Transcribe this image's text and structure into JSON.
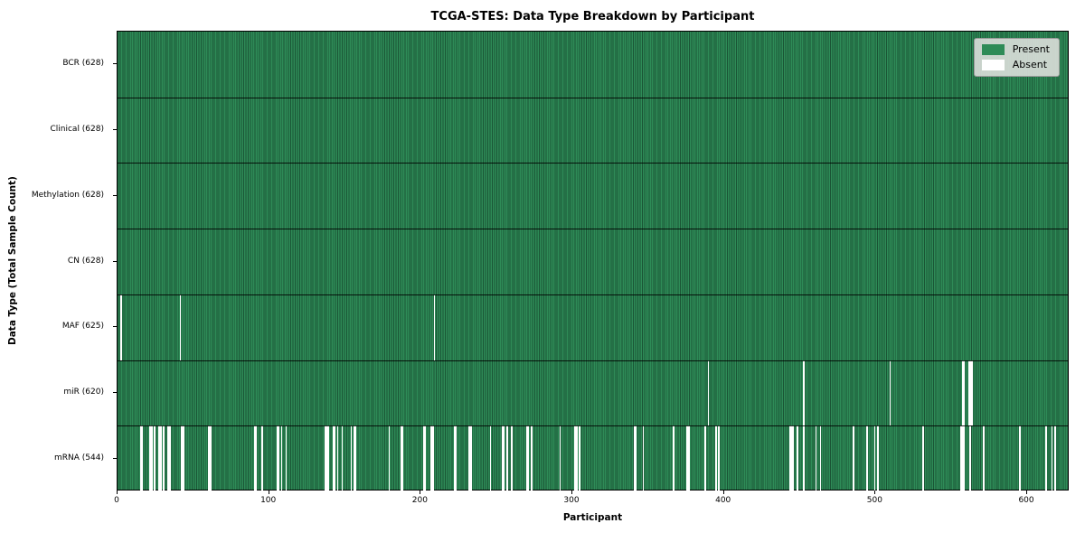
{
  "title": "TCGA-STES: Data Type Breakdown by Participant",
  "xlabel": "Participant",
  "ylabel": "Data Type (Total Sample Count)",
  "legend": {
    "present_label": "Present",
    "absent_label": "Absent"
  },
  "colors": {
    "present": "#2e8b57",
    "absent": "#ffffff",
    "cell_edge": "#1b4d32",
    "gridline": "#000000",
    "legend_bg": "#d9d9d9"
  },
  "chart_data": {
    "type": "heatmap",
    "x_total": 628,
    "xlim": [
      0,
      628
    ],
    "xticks": [
      0,
      100,
      200,
      300,
      400,
      500,
      600
    ],
    "legend_position": "upper right",
    "value_states": [
      "Present",
      "Absent"
    ],
    "rows": [
      {
        "label": "BCR (628)",
        "data_type": "BCR",
        "present_count": 628,
        "absent_count": 0,
        "absent_indices": []
      },
      {
        "label": "Clinical (628)",
        "data_type": "Clinical",
        "present_count": 628,
        "absent_count": 0,
        "absent_indices": []
      },
      {
        "label": "Methylation (628)",
        "data_type": "Methylation",
        "present_count": 628,
        "absent_count": 0,
        "absent_indices": []
      },
      {
        "label": "CN (628)",
        "data_type": "CN",
        "present_count": 628,
        "absent_count": 0,
        "absent_indices": []
      },
      {
        "label": "MAF (625)",
        "data_type": "MAF",
        "present_count": 625,
        "absent_count": 3,
        "absent_indices": [
          2,
          41,
          209
        ]
      },
      {
        "label": "miR (620)",
        "data_type": "miR",
        "present_count": 620,
        "absent_count": 8,
        "absent_indices": [
          390,
          453,
          510,
          558,
          559,
          562,
          563,
          564
        ]
      },
      {
        "label": "mRNA (544)",
        "data_type": "mRNA",
        "present_count": 544,
        "absent_count": 84,
        "absent_indices": [
          15,
          16,
          21,
          22,
          24,
          27,
          28,
          30,
          33,
          34,
          42,
          43,
          60,
          61,
          90,
          91,
          95,
          105,
          106,
          108,
          111,
          137,
          138,
          139,
          142,
          143,
          145,
          148,
          154,
          156,
          157,
          179,
          187,
          188,
          202,
          203,
          207,
          208,
          222,
          223,
          232,
          233,
          246,
          254,
          255,
          257,
          260,
          270,
          271,
          273,
          292,
          302,
          303,
          305,
          341,
          342,
          347,
          367,
          376,
          377,
          388,
          395,
          397,
          444,
          445,
          446,
          449,
          453,
          461,
          464,
          486,
          495,
          500,
          502,
          532,
          557,
          558,
          559,
          563,
          572,
          596,
          613,
          617,
          619
        ]
      }
    ]
  }
}
